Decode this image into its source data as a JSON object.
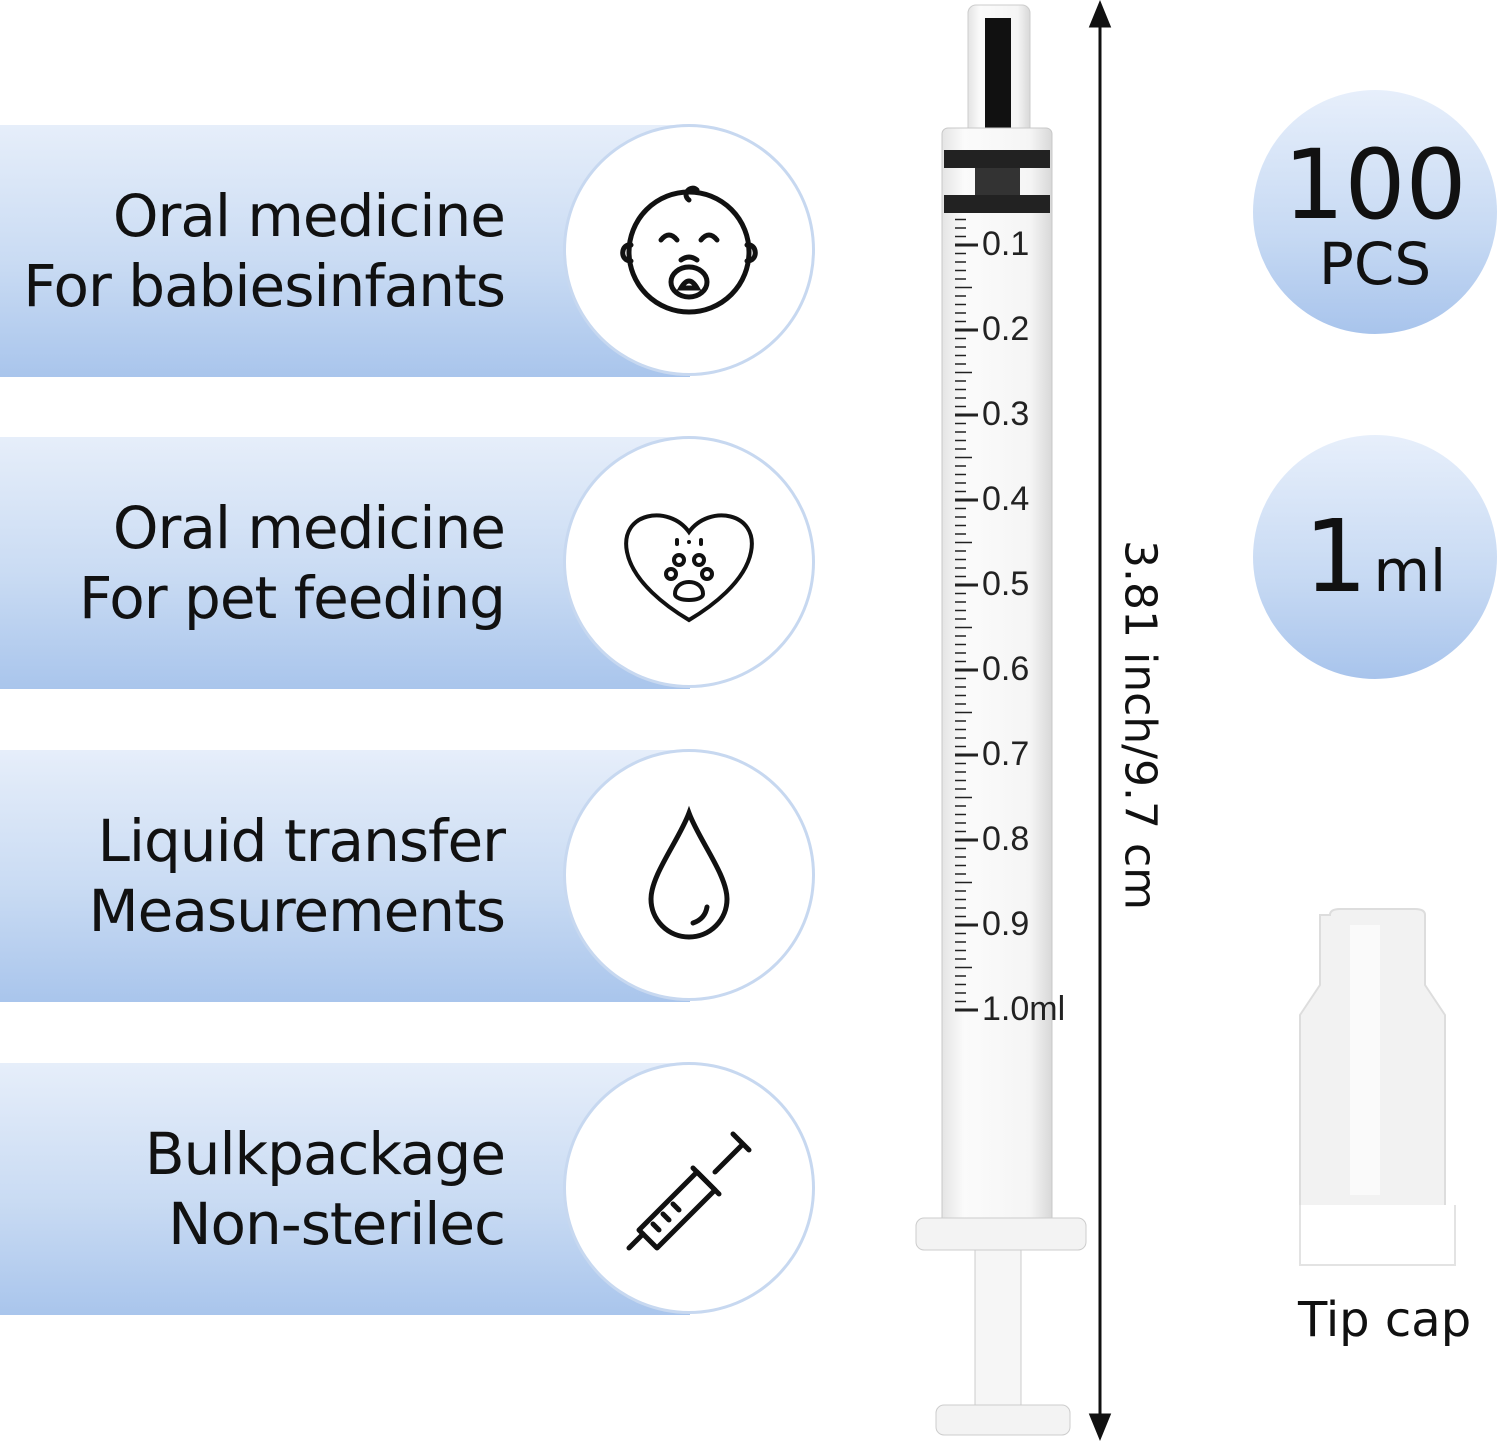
{
  "features": [
    {
      "line1": "Oral medicine",
      "line2": "For babiesinfants",
      "icon": "baby-face-icon"
    },
    {
      "line1": "Oral medicine",
      "line2": "For pet feeding",
      "icon": "pet-paw-heart-icon"
    },
    {
      "line1": "Liquid transfer",
      "line2": "Measurements",
      "icon": "water-drop-icon"
    },
    {
      "line1": "Bulkpackage",
      "line2": "Non-sterilec",
      "icon": "syringe-icon"
    }
  ],
  "badges": {
    "quantity": {
      "number": "100",
      "unit": "PCS"
    },
    "capacity": {
      "number": "1",
      "unit": "ml"
    }
  },
  "syringe": {
    "graduations": [
      "0.1",
      "0.2",
      "0.3",
      "0.4",
      "0.5",
      "0.6",
      "0.7",
      "0.8",
      "0.9",
      "1.0ml"
    ]
  },
  "dimension": "3.81 inch/9.7 cm",
  "tip_cap_label": "Tip cap",
  "colors": {
    "banner_top": "#e6eefa",
    "banner_bottom": "#a9c5ec",
    "text": "#111111"
  }
}
